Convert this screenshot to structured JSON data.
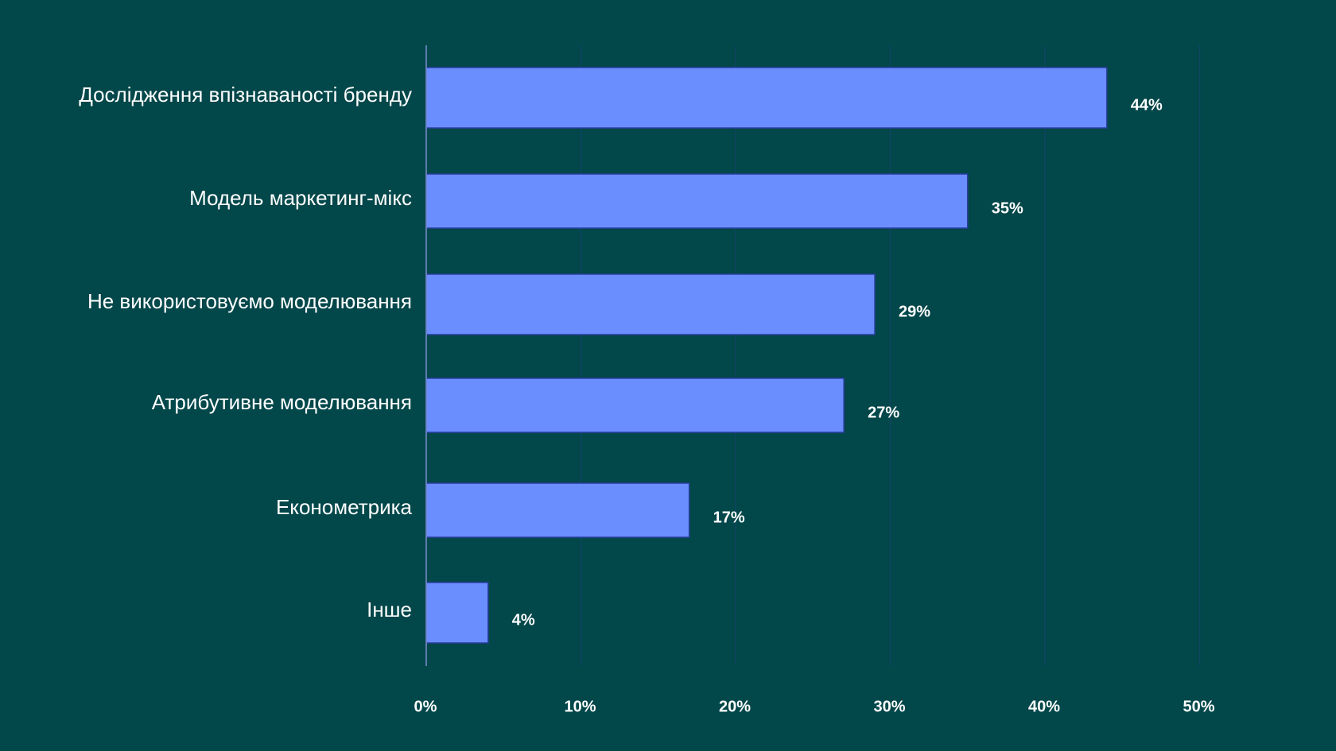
{
  "chart_data": {
    "type": "bar",
    "orientation": "horizontal",
    "categories": [
      "Дослідження впізнаваності бренду",
      "Модель маркетинг-мікс",
      "Не використовуємо моделювання",
      "Атрибутивне моделювання",
      "Економетрика",
      "Інше"
    ],
    "values": [
      44,
      35,
      29,
      27,
      17,
      4
    ],
    "value_labels": [
      "44%",
      "35%",
      "29%",
      "27%",
      "17%",
      "4%"
    ],
    "xlim": [
      0,
      50
    ],
    "x_ticks": [
      0,
      10,
      20,
      30,
      40,
      50
    ],
    "x_tick_labels": [
      "0%",
      "10%",
      "20%",
      "30%",
      "40%",
      "50%"
    ],
    "title": "",
    "xlabel": "",
    "ylabel": "",
    "grid": "vertical",
    "colors": {
      "background": "#02474A",
      "bar": "#6B8EFF",
      "bar_outline": "#2A3FA0",
      "grid": "#0E4660",
      "axis": "#7A8FD0",
      "text": "#FFFFFF"
    }
  }
}
